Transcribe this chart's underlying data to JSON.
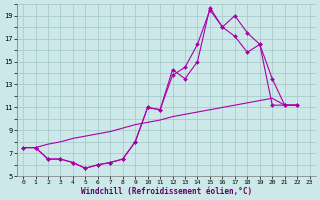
{
  "xlabel": "Windchill (Refroidissement éolien,°C)",
  "background_color": "#cce8e8",
  "grid_color": "#aacccc",
  "line_color": "#aa00aa",
  "xlim": [
    -0.5,
    23.5
  ],
  "ylim": [
    5,
    20
  ],
  "xtick_labels": [
    "0",
    "1",
    "2",
    "3",
    "4",
    "5",
    "6",
    "7",
    "8",
    "9",
    "10",
    "11",
    "12",
    "13",
    "14",
    "15",
    "16",
    "17",
    "18",
    "19",
    "20",
    "21",
    "22",
    "23"
  ],
  "ytick_labels": [
    "5",
    "",
    "7",
    "",
    "9",
    "",
    "11",
    "",
    "13",
    "",
    "15",
    "",
    "17",
    "",
    "19",
    ""
  ],
  "line1_x": [
    0,
    1,
    2,
    3,
    4,
    5,
    6,
    7,
    8,
    9,
    10,
    11,
    12,
    13,
    14,
    15,
    16,
    17,
    18,
    19,
    20,
    21,
    22
  ],
  "line1_y": [
    7.5,
    7.5,
    6.5,
    6.5,
    6.2,
    5.7,
    6.0,
    6.2,
    6.5,
    8.0,
    11.0,
    10.8,
    14.3,
    13.5,
    15.0,
    19.7,
    18.0,
    19.0,
    17.5,
    16.5,
    11.2,
    11.2,
    11.2
  ],
  "line2_x": [
    0,
    1,
    2,
    3,
    4,
    5,
    6,
    7,
    8,
    9,
    10,
    11,
    12,
    13,
    14,
    15,
    16,
    17,
    18,
    19,
    20,
    21,
    22
  ],
  "line2_y": [
    7.5,
    7.5,
    6.5,
    6.5,
    6.2,
    5.7,
    6.0,
    6.2,
    6.5,
    8.0,
    11.0,
    10.8,
    13.8,
    14.5,
    16.5,
    19.5,
    18.0,
    17.2,
    15.8,
    16.5,
    13.5,
    11.2,
    11.2
  ],
  "line3_x": [
    0,
    1,
    2,
    3,
    4,
    5,
    6,
    7,
    8,
    9,
    10,
    11,
    12,
    13,
    14,
    15,
    16,
    17,
    18,
    19,
    20,
    21,
    22
  ],
  "line3_y": [
    7.5,
    7.5,
    7.8,
    8.0,
    8.3,
    8.5,
    8.7,
    8.9,
    9.2,
    9.5,
    9.7,
    9.9,
    10.2,
    10.4,
    10.6,
    10.8,
    11.0,
    11.2,
    11.4,
    11.6,
    11.8,
    11.2,
    11.2
  ]
}
